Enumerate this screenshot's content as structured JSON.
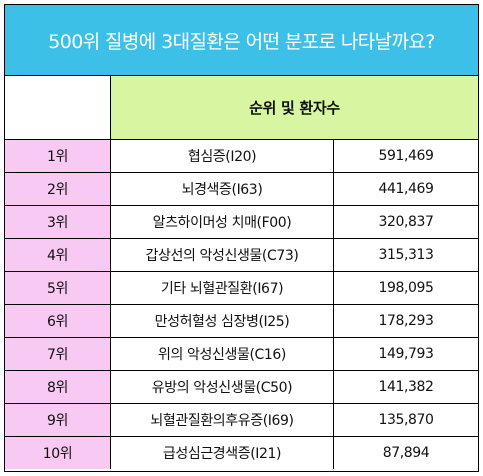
{
  "title": "500위 질병에 3대질환은 어떤 분포로 나타날까요?",
  "header": {
    "label": "순위 및 환자수"
  },
  "colors": {
    "title_bg": "#3cc0e8",
    "header_bg": "#d8f5a2",
    "rank_bg": "#f8c9f3"
  },
  "rows": [
    {
      "rank": "1위",
      "disease": "협심증(I20)",
      "count": "591,469"
    },
    {
      "rank": "2위",
      "disease": "뇌경색증(I63)",
      "count": "441,469"
    },
    {
      "rank": "3위",
      "disease": "알츠하이머성 치매(F00)",
      "count": "320,837"
    },
    {
      "rank": "4위",
      "disease": "갑상선의 악성신생물(C73)",
      "count": "315,313"
    },
    {
      "rank": "5위",
      "disease": "기타 뇌혈관질환(I67)",
      "count": "198,095"
    },
    {
      "rank": "6위",
      "disease": "만성허혈성 심장병(I25)",
      "count": "178,293"
    },
    {
      "rank": "7위",
      "disease": "위의 악성신생물(C16)",
      "count": "149,793"
    },
    {
      "rank": "8위",
      "disease": "유방의 악성신생물(C50)",
      "count": "141,382"
    },
    {
      "rank": "9위",
      "disease": "뇌혈관질환의후유증(I69)",
      "count": "135,870"
    },
    {
      "rank": "10위",
      "disease": "급성심근경색증(I21)",
      "count": "87,894"
    }
  ]
}
